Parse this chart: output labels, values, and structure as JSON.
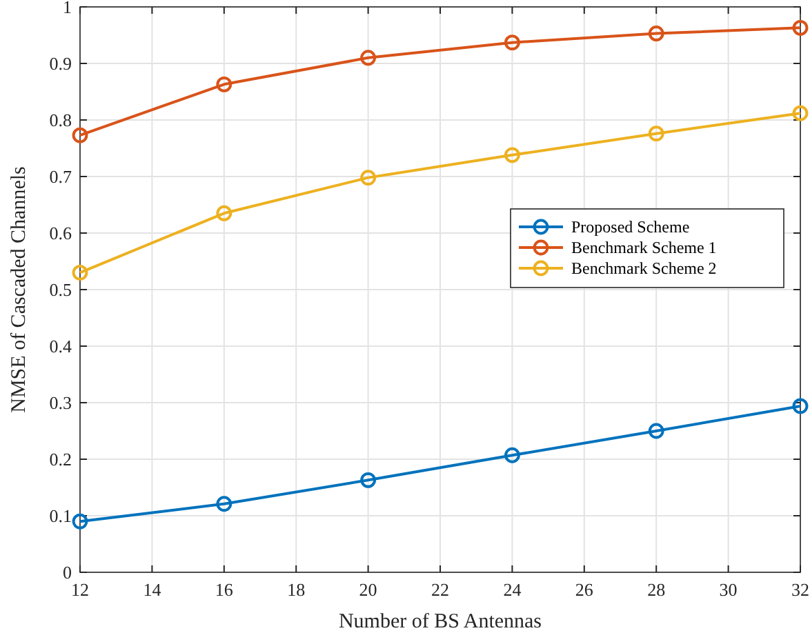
{
  "chart_data": {
    "type": "line",
    "xlabel": "Number of BS Antennas",
    "ylabel": "NMSE of Cascaded Channels",
    "x": [
      12,
      16,
      20,
      24,
      28,
      32
    ],
    "series": [
      {
        "name": "Proposed Scheme",
        "color": "#0072bd",
        "values": [
          0.09,
          0.121,
          0.163,
          0.207,
          0.25,
          0.294
        ]
      },
      {
        "name": "Benchmark Scheme 1",
        "color": "#d95319",
        "values": [
          0.773,
          0.863,
          0.91,
          0.937,
          0.953,
          0.963
        ]
      },
      {
        "name": "Benchmark Scheme 2",
        "color": "#edb120",
        "values": [
          0.53,
          0.635,
          0.698,
          0.738,
          0.776,
          0.812
        ]
      }
    ],
    "xlim": [
      12,
      32
    ],
    "xticks": [
      12,
      14,
      16,
      18,
      20,
      22,
      24,
      26,
      28,
      30,
      32
    ],
    "ylim": [
      0,
      1
    ],
    "yticks": [
      0,
      0.1,
      0.2,
      0.3,
      0.4,
      0.5,
      0.6,
      0.7,
      0.8,
      0.9,
      1
    ],
    "grid": true,
    "legend": "right",
    "marker": "circle",
    "line_style": "solid"
  }
}
